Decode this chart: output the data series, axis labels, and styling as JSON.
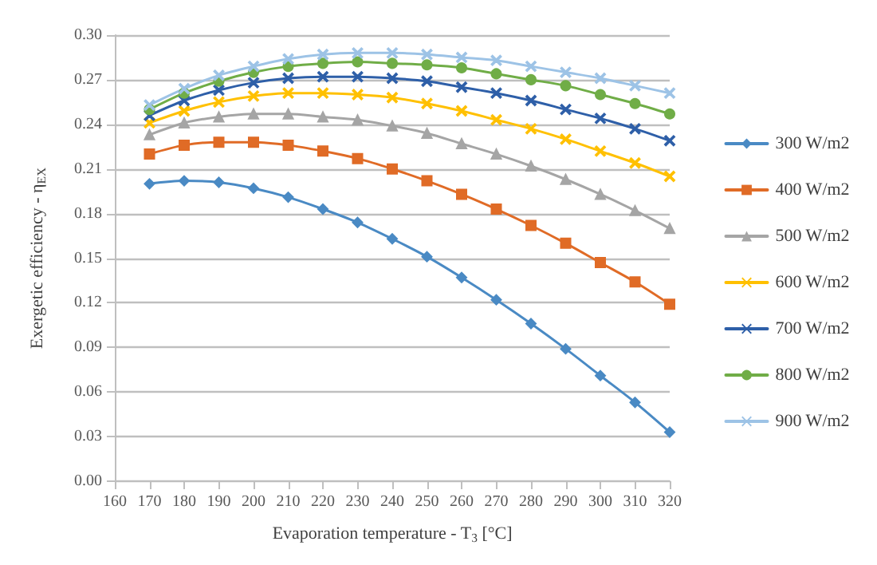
{
  "chart_data": {
    "type": "line",
    "xlabel": "Evaporation temperature - T$_{3}$ [°C]",
    "ylabel": "Exergetic efficiency - η$_{EX}$",
    "x": [
      170,
      180,
      190,
      200,
      210,
      220,
      230,
      240,
      250,
      260,
      270,
      280,
      290,
      300,
      310,
      320
    ],
    "xlim": [
      160,
      320
    ],
    "xticks": [
      160,
      170,
      180,
      190,
      200,
      210,
      220,
      230,
      240,
      250,
      260,
      270,
      280,
      290,
      300,
      310,
      320
    ],
    "ylim": [
      0,
      0.3
    ],
    "yticks": [
      {
        "value": 0,
        "label": "0.00"
      },
      {
        "value": 0.03,
        "label": "0.03"
      },
      {
        "value": 0.06,
        "label": "0.06"
      },
      {
        "value": 0.09,
        "label": "0.09"
      },
      {
        "value": 0.12,
        "label": "0.12"
      },
      {
        "value": 0.15,
        "label": "0.15"
      },
      {
        "value": 0.18,
        "label": "0.18"
      },
      {
        "value": 0.21,
        "label": "0.21"
      },
      {
        "value": 0.24,
        "label": "0.24"
      },
      {
        "value": 0.27,
        "label": "0.27"
      },
      {
        "value": 0.3,
        "label": "0.30"
      }
    ],
    "grid": "y",
    "legend": "right",
    "line_style": "solid",
    "series": [
      {
        "name": "300 W/m2",
        "color": "#4a8ac4",
        "marker": "diamond",
        "values": [
          0.2,
          0.202,
          0.201,
          0.197,
          0.191,
          0.183,
          0.174,
          0.163,
          0.151,
          0.137,
          0.122,
          0.106,
          0.089,
          0.071,
          0.053,
          0.033
        ]
      },
      {
        "name": "400 W/m2",
        "color": "#e06b26",
        "marker": "square",
        "values": [
          0.22,
          0.226,
          0.228,
          0.228,
          0.226,
          0.222,
          0.217,
          0.21,
          0.202,
          0.193,
          0.183,
          0.172,
          0.16,
          0.147,
          0.134,
          0.119
        ]
      },
      {
        "name": "500 W/m2",
        "color": "#a5a5a5",
        "marker": "triangle",
        "values": [
          0.233,
          0.241,
          0.245,
          0.247,
          0.247,
          0.245,
          0.243,
          0.239,
          0.234,
          0.227,
          0.22,
          0.212,
          0.203,
          0.193,
          0.182,
          0.17
        ]
      },
      {
        "name": "600 W/m2",
        "color": "#ffc000",
        "marker": "cross",
        "values": [
          0.241,
          0.249,
          0.255,
          0.259,
          0.261,
          0.261,
          0.26,
          0.258,
          0.254,
          0.249,
          0.243,
          0.237,
          0.23,
          0.222,
          0.214,
          0.205
        ]
      },
      {
        "name": "700 W/m2",
        "color": "#2e5fa8",
        "marker": "cross",
        "values": [
          0.246,
          0.256,
          0.263,
          0.268,
          0.271,
          0.272,
          0.272,
          0.271,
          0.269,
          0.265,
          0.261,
          0.256,
          0.25,
          0.244,
          0.237,
          0.229
        ]
      },
      {
        "name": "800 W/m2",
        "color": "#70ad47",
        "marker": "circle",
        "values": [
          0.25,
          0.261,
          0.269,
          0.275,
          0.279,
          0.281,
          0.282,
          0.281,
          0.28,
          0.278,
          0.274,
          0.27,
          0.266,
          0.26,
          0.254,
          0.247
        ]
      },
      {
        "name": "900 W/m2",
        "color": "#9dc3e6",
        "marker": "cross",
        "values": [
          0.253,
          0.264,
          0.273,
          0.279,
          0.284,
          0.287,
          0.288,
          0.288,
          0.287,
          0.285,
          0.283,
          0.279,
          0.275,
          0.271,
          0.266,
          0.261
        ]
      }
    ]
  }
}
